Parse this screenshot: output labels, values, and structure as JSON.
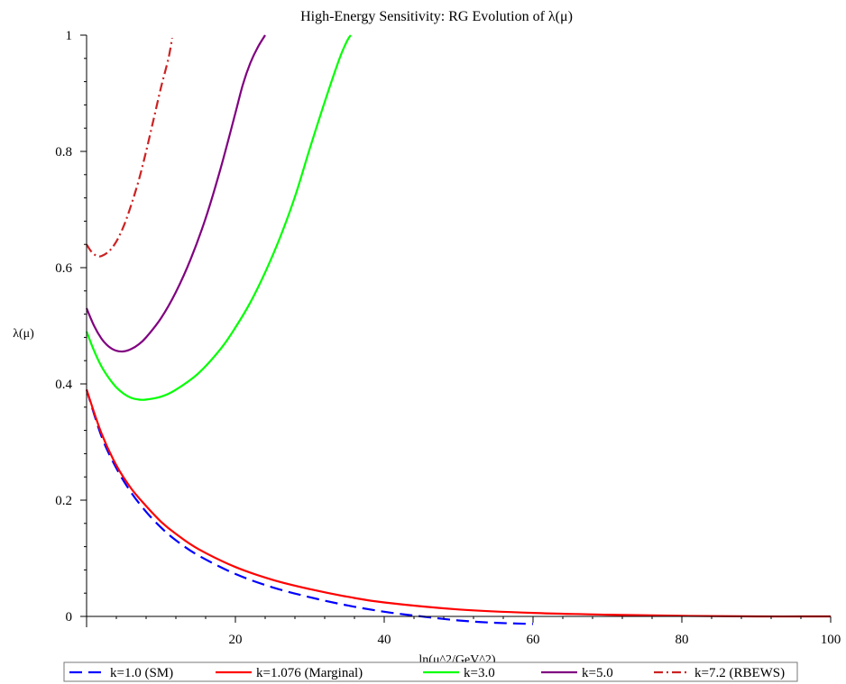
{
  "chart_data": {
    "type": "line",
    "title": "High-Energy Sensitivity: RG Evolution of λ(μ)",
    "xlabel": "ln(μ^2/GeV^2)",
    "ylabel": "λ(μ)",
    "xlim": [
      0,
      100
    ],
    "ylim": [
      -0.02,
      1.0
    ],
    "x_ticks": [
      20,
      40,
      60,
      80,
      100
    ],
    "y_ticks": [
      0,
      0.2,
      0.4,
      0.6,
      0.8,
      1
    ],
    "x_tick_labels": [
      "20",
      "40",
      "60",
      "80",
      "100"
    ],
    "y_tick_labels": [
      "0",
      "0.2",
      "0.4",
      "0.6",
      "0.8",
      "1"
    ],
    "grid": false,
    "legend_position": "bottom",
    "series": [
      {
        "name": "k=1.0 (SM)",
        "color": "#0000ff",
        "style": "dashed",
        "x": [
          0,
          2,
          4,
          6,
          8,
          10,
          12,
          15,
          20,
          25,
          30,
          35,
          40,
          45,
          50,
          55,
          60
        ],
        "y": [
          0.39,
          0.31,
          0.255,
          0.213,
          0.18,
          0.153,
          0.131,
          0.105,
          0.073,
          0.05,
          0.033,
          0.019,
          0.008,
          0.0,
          -0.007,
          -0.011,
          -0.013
        ]
      },
      {
        "name": "k=1.076 (Marginal)",
        "color": "#ff0000",
        "style": "solid",
        "x": [
          0,
          2,
          4,
          6,
          8,
          10,
          12,
          15,
          20,
          25,
          30,
          35,
          40,
          50,
          60,
          70,
          80,
          90,
          100
        ],
        "y": [
          0.39,
          0.315,
          0.26,
          0.22,
          0.19,
          0.163,
          0.142,
          0.116,
          0.085,
          0.063,
          0.047,
          0.034,
          0.024,
          0.012,
          0.006,
          0.003,
          0.001,
          0.0,
          0.0
        ]
      },
      {
        "name": "k=3.0",
        "color": "#00ff00",
        "style": "solid",
        "x": [
          0,
          1,
          2,
          3,
          4,
          5,
          6,
          7,
          8,
          10,
          12,
          15,
          18,
          20,
          22,
          24,
          26,
          28,
          30,
          32,
          34,
          35,
          35.5
        ],
        "y": [
          0.49,
          0.457,
          0.43,
          0.41,
          0.394,
          0.383,
          0.376,
          0.373,
          0.373,
          0.378,
          0.39,
          0.418,
          0.46,
          0.497,
          0.54,
          0.592,
          0.652,
          0.722,
          0.805,
          0.885,
          0.96,
          0.99,
          1.0
        ]
      },
      {
        "name": "k=5.0",
        "color": "#800080",
        "style": "solid",
        "x": [
          0,
          1,
          2,
          3,
          4,
          5,
          6,
          7,
          8,
          10,
          12,
          14,
          16,
          18,
          20,
          21,
          22,
          23,
          24
        ],
        "y": [
          0.53,
          0.5,
          0.478,
          0.464,
          0.457,
          0.456,
          0.46,
          0.468,
          0.48,
          0.513,
          0.558,
          0.615,
          0.685,
          0.77,
          0.866,
          0.915,
          0.952,
          0.979,
          1.0
        ]
      },
      {
        "name": "k=7.2 (RBEWS)",
        "color": "#cc2222",
        "style": "dashdot",
        "x": [
          0,
          0.5,
          1,
          1.5,
          2,
          3,
          4,
          5,
          6,
          7,
          8,
          9,
          10,
          11,
          11.5
        ],
        "y": [
          0.64,
          0.63,
          0.623,
          0.62,
          0.62,
          0.628,
          0.645,
          0.672,
          0.708,
          0.75,
          0.8,
          0.855,
          0.91,
          0.96,
          0.995
        ]
      }
    ]
  }
}
